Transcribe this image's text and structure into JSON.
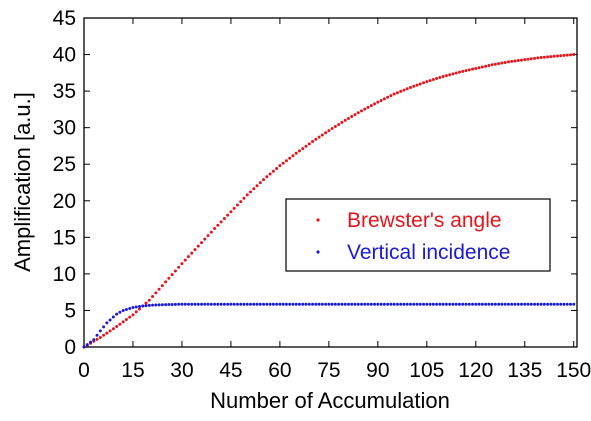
{
  "chart_data": {
    "type": "scatter",
    "title": "",
    "xlabel": "Number of Accumulation",
    "ylabel": "Amplification [a.u.]",
    "xlim": [
      0,
      151
    ],
    "ylim": [
      0,
      45
    ],
    "xticks": [
      0,
      15,
      30,
      45,
      60,
      75,
      90,
      105,
      120,
      135,
      150
    ],
    "yticks": [
      0,
      5,
      10,
      15,
      20,
      25,
      30,
      35,
      40,
      45
    ],
    "grid": false,
    "legend_position": "middle-right",
    "series": [
      {
        "name": "Brewster's angle",
        "color": "#e8131b",
        "x": [
          0,
          5,
          10,
          15,
          20,
          25,
          30,
          35,
          40,
          45,
          50,
          55,
          60,
          65,
          70,
          75,
          80,
          85,
          90,
          95,
          100,
          105,
          110,
          115,
          120,
          125,
          130,
          135,
          140,
          145,
          150
        ],
        "y": [
          0,
          1.3,
          2.8,
          4.4,
          6.4,
          8.9,
          11.4,
          13.8,
          16.2,
          18.5,
          20.8,
          22.9,
          24.8,
          26.5,
          28.1,
          29.6,
          31.0,
          32.3,
          33.5,
          34.6,
          35.5,
          36.3,
          37.0,
          37.6,
          38.1,
          38.6,
          39.0,
          39.3,
          39.6,
          39.8,
          40.0
        ]
      },
      {
        "name": "Vertical incidence",
        "color": "#1a1ad6",
        "x": [
          0,
          3,
          5,
          7,
          10,
          12,
          15,
          18,
          20,
          25,
          30,
          40,
          50,
          60,
          70,
          80,
          90,
          100,
          110,
          120,
          130,
          140,
          150
        ],
        "y": [
          0,
          1.0,
          2.2,
          3.3,
          4.5,
          5.0,
          5.4,
          5.6,
          5.7,
          5.8,
          5.85,
          5.85,
          5.85,
          5.85,
          5.85,
          5.85,
          5.85,
          5.85,
          5.85,
          5.85,
          5.85,
          5.85,
          5.85
        ]
      }
    ]
  }
}
